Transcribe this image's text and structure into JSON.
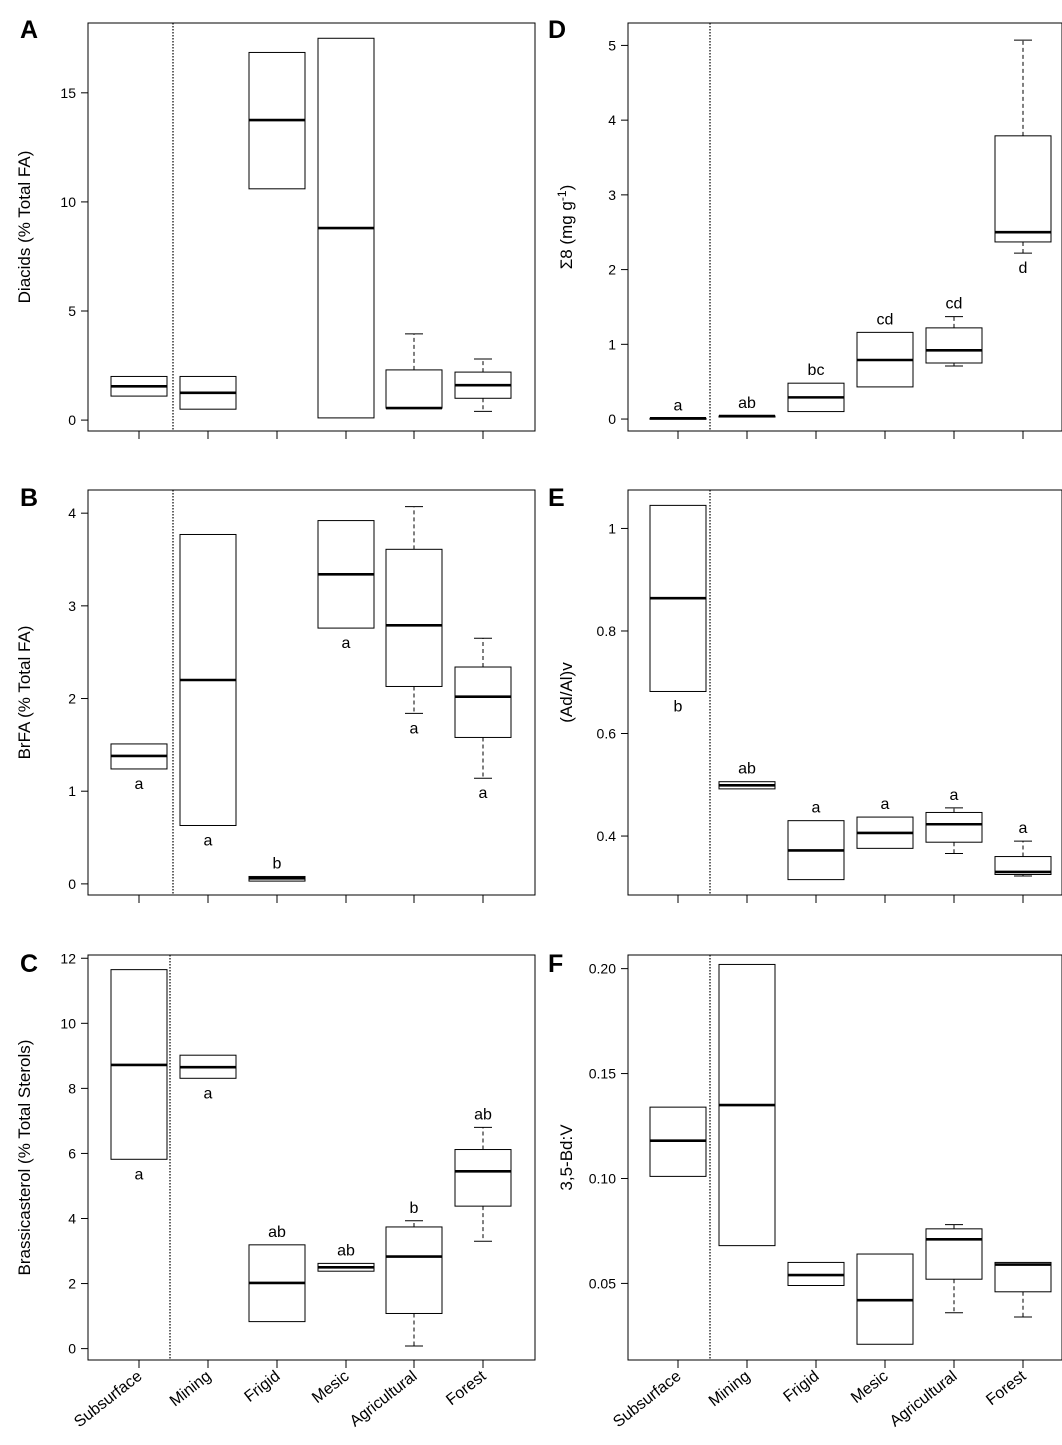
{
  "chart_data": [
    {
      "type": "box",
      "panel": "A",
      "ylabel": "Diacids (% Total FA)",
      "yticks": [
        0,
        5,
        10,
        15
      ],
      "ylim": [
        -0.5,
        18.2
      ],
      "categories": [
        "Subsurface",
        "Mining",
        "Frigid",
        "Mesic",
        "Agricultural",
        "Forest"
      ],
      "boxes": [
        {
          "q1": 1.1,
          "median": 1.55,
          "q3": 2.0,
          "whisker_low": null,
          "whisker_high": null,
          "letter": ""
        },
        {
          "q1": 0.5,
          "median": 1.25,
          "q3": 2.0,
          "whisker_low": null,
          "whisker_high": null,
          "letter": ""
        },
        {
          "q1": 10.6,
          "median": 13.75,
          "q3": 16.85,
          "whisker_low": null,
          "whisker_high": null,
          "letter": ""
        },
        {
          "q1": 0.1,
          "median": 8.8,
          "q3": 17.5,
          "whisker_low": null,
          "whisker_high": null,
          "letter": ""
        },
        {
          "q1": 0.55,
          "median": 0.55,
          "q3": 2.3,
          "whisker_low": 0.55,
          "whisker_high": 3.95,
          "letter": ""
        },
        {
          "q1": 1.0,
          "median": 1.6,
          "q3": 2.2,
          "whisker_low": 0.4,
          "whisker_high": 2.8,
          "letter": ""
        }
      ]
    },
    {
      "type": "box",
      "panel": "B",
      "ylabel": "BrFA (% Total FA)",
      "yticks": [
        0,
        1,
        2,
        3,
        4
      ],
      "ylim": [
        -0.12,
        4.25
      ],
      "categories": [
        "Subsurface",
        "Mining",
        "Frigid",
        "Mesic",
        "Agricultural",
        "Forest"
      ],
      "boxes": [
        {
          "q1": 1.24,
          "median": 1.38,
          "q3": 1.51,
          "whisker_low": null,
          "whisker_high": null,
          "letter": "a"
        },
        {
          "q1": 0.63,
          "median": 2.2,
          "q3": 3.77,
          "whisker_low": null,
          "whisker_high": null,
          "letter": "a"
        },
        {
          "q1": 0.03,
          "median": 0.06,
          "q3": 0.08,
          "whisker_low": null,
          "whisker_high": null,
          "letter": "b"
        },
        {
          "q1": 2.76,
          "median": 3.34,
          "q3": 3.92,
          "whisker_low": null,
          "whisker_high": null,
          "letter": "a"
        },
        {
          "q1": 2.13,
          "median": 2.79,
          "q3": 3.61,
          "whisker_low": 1.84,
          "whisker_high": 4.07,
          "letter": "a"
        },
        {
          "q1": 1.58,
          "median": 2.02,
          "q3": 2.34,
          "whisker_low": 1.14,
          "whisker_high": 2.65,
          "letter": "a"
        }
      ]
    },
    {
      "type": "box",
      "panel": "C",
      "ylabel": "Brassicasterol (% Total Sterols)",
      "yticks": [
        0,
        2,
        4,
        6,
        8,
        10,
        12
      ],
      "ylim": [
        -0.35,
        12.1
      ],
      "categories": [
        "Subsurface",
        "Mining",
        "Frigid",
        "Mesic",
        "Agricultural",
        "Forest"
      ],
      "boxes": [
        {
          "q1": 5.82,
          "median": 8.72,
          "q3": 11.65,
          "whisker_low": null,
          "whisker_high": null,
          "letter": "a"
        },
        {
          "q1": 8.31,
          "median": 8.65,
          "q3": 9.02,
          "whisker_low": null,
          "whisker_high": null,
          "letter": "a"
        },
        {
          "q1": 0.83,
          "median": 2.02,
          "q3": 3.19,
          "whisker_low": null,
          "whisker_high": null,
          "letter": "ab"
        },
        {
          "q1": 2.38,
          "median": 2.5,
          "q3": 2.62,
          "whisker_low": null,
          "whisker_high": null,
          "letter": "ab"
        },
        {
          "q1": 1.08,
          "median": 2.83,
          "q3": 3.74,
          "whisker_low": 0.08,
          "whisker_high": 3.93,
          "letter": "b"
        },
        {
          "q1": 4.38,
          "median": 5.45,
          "q3": 6.12,
          "whisker_low": 3.3,
          "whisker_high": 6.8,
          "letter": "ab"
        }
      ]
    },
    {
      "type": "box",
      "panel": "D",
      "ylabel": "Σ8 (mg g-1)",
      "yticks": [
        0,
        1,
        2,
        3,
        4,
        5
      ],
      "ylim": [
        -0.16,
        5.3
      ],
      "categories": [
        "Subsurface",
        "Mining",
        "Frigid",
        "Mesic",
        "Agricultural",
        "Forest"
      ],
      "boxes": [
        {
          "q1": 0.01,
          "median": 0.01,
          "q3": 0.01,
          "whisker_low": null,
          "whisker_high": null,
          "letter": "a"
        },
        {
          "q1": 0.03,
          "median": 0.04,
          "q3": 0.04,
          "whisker_low": null,
          "whisker_high": null,
          "letter": "ab"
        },
        {
          "q1": 0.1,
          "median": 0.29,
          "q3": 0.48,
          "whisker_low": null,
          "whisker_high": null,
          "letter": "bc"
        },
        {
          "q1": 0.43,
          "median": 0.79,
          "q3": 1.16,
          "whisker_low": null,
          "whisker_high": null,
          "letter": "cd"
        },
        {
          "q1": 0.75,
          "median": 0.92,
          "q3": 1.22,
          "whisker_low": 0.71,
          "whisker_high": 1.37,
          "letter": "cd"
        },
        {
          "q1": 2.37,
          "median": 2.5,
          "q3": 3.79,
          "whisker_low": 2.22,
          "whisker_high": 5.07,
          "letter": "d"
        }
      ]
    },
    {
      "type": "box",
      "panel": "E",
      "ylabel": "(Ad/Al)v",
      "yticks": [
        0.4,
        0.6,
        0.8,
        1.0
      ],
      "ylim": [
        0.285,
        1.075
      ],
      "categories": [
        "Subsurface",
        "Mining",
        "Frigid",
        "Mesic",
        "Agricultural",
        "Forest"
      ],
      "boxes": [
        {
          "q1": 0.682,
          "median": 0.864,
          "q3": 1.045,
          "whisker_low": null,
          "whisker_high": null,
          "letter": "b"
        },
        {
          "q1": 0.492,
          "median": 0.499,
          "q3": 0.506,
          "whisker_low": null,
          "whisker_high": null,
          "letter": "ab"
        },
        {
          "q1": 0.315,
          "median": 0.372,
          "q3": 0.43,
          "whisker_low": null,
          "whisker_high": null,
          "letter": "a"
        },
        {
          "q1": 0.376,
          "median": 0.406,
          "q3": 0.437,
          "whisker_low": null,
          "whisker_high": null,
          "letter": "a"
        },
        {
          "q1": 0.388,
          "median": 0.423,
          "q3": 0.446,
          "whisker_low": 0.366,
          "whisker_high": 0.455,
          "letter": "a"
        },
        {
          "q1": 0.325,
          "median": 0.33,
          "q3": 0.36,
          "whisker_low": 0.322,
          "whisker_high": 0.39,
          "letter": "a"
        }
      ]
    },
    {
      "type": "box",
      "panel": "F",
      "ylabel": "3,5-Bd:V",
      "yticks": [
        0.05,
        0.1,
        0.15,
        0.2
      ],
      "ylim": [
        0.0135,
        0.2065
      ],
      "yticklabels": [
        "0.05",
        "0.10",
        "0.15",
        "0.20"
      ],
      "categories": [
        "Subsurface",
        "Mining",
        "Frigid",
        "Mesic",
        "Agricultural",
        "Forest"
      ],
      "boxes": [
        {
          "q1": 0.101,
          "median": 0.118,
          "q3": 0.134,
          "whisker_low": null,
          "whisker_high": null,
          "letter": ""
        },
        {
          "q1": 0.068,
          "median": 0.135,
          "q3": 0.202,
          "whisker_low": null,
          "whisker_high": null,
          "letter": ""
        },
        {
          "q1": 0.049,
          "median": 0.054,
          "q3": 0.06,
          "whisker_low": null,
          "whisker_high": null,
          "letter": ""
        },
        {
          "q1": 0.021,
          "median": 0.042,
          "q3": 0.064,
          "whisker_low": null,
          "whisker_high": null,
          "letter": ""
        },
        {
          "q1": 0.052,
          "median": 0.071,
          "q3": 0.076,
          "whisker_low": 0.036,
          "whisker_high": 0.078,
          "letter": ""
        },
        {
          "q1": 0.046,
          "median": 0.059,
          "q3": 0.06,
          "whisker_low": 0.034,
          "whisker_high": 0.06,
          "letter": ""
        }
      ]
    }
  ]
}
